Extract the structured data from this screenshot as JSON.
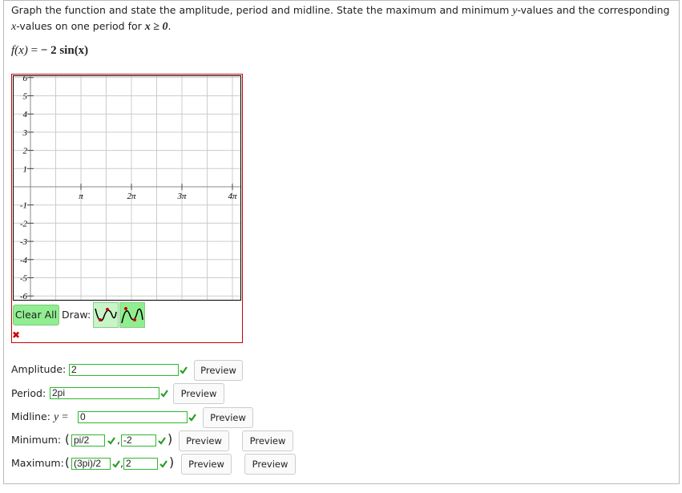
{
  "question": {
    "parts": [
      "Graph the function and state the amplitude, period and midline. State the maximum and minimum ",
      "y",
      "-values and the corresponding ",
      "x",
      "-values on one period for ",
      "x ≥ 0",
      "."
    ]
  },
  "function": {
    "lhs": "f(x)",
    "equals": "=",
    "rhs": "− 2 sin(x)"
  },
  "graph": {
    "y_labels": [
      "6",
      "5",
      "4",
      "3",
      "2",
      "1",
      "-1",
      "-2",
      "-3",
      "-4",
      "-5",
      "-6"
    ],
    "x_labels": [
      "π",
      "2π",
      "3π",
      "4π"
    ],
    "clear_button": "Clear All",
    "draw_label": "Draw:"
  },
  "answers": {
    "amplitude": {
      "label": "Amplitude:",
      "value": "2",
      "button": "Preview"
    },
    "period": {
      "label": "Period:",
      "value": "2pi",
      "button": "Preview"
    },
    "midline": {
      "label": "Midline:",
      "variable": "y",
      "equals": "=",
      "value": "0",
      "button": "Preview"
    },
    "minimum": {
      "label": "Minimum:",
      "open": "(",
      "x": "pi/2",
      "separator": ",",
      "y": "-2",
      "close": ")",
      "button_1": "Preview",
      "button_2": "Preview"
    },
    "maximum": {
      "label": "Maximum:",
      "open": "(",
      "x": "(3pi)/2",
      "separator": ",",
      "y": "2",
      "close": ")",
      "button_1": "Preview",
      "button_2": "Preview"
    }
  }
}
